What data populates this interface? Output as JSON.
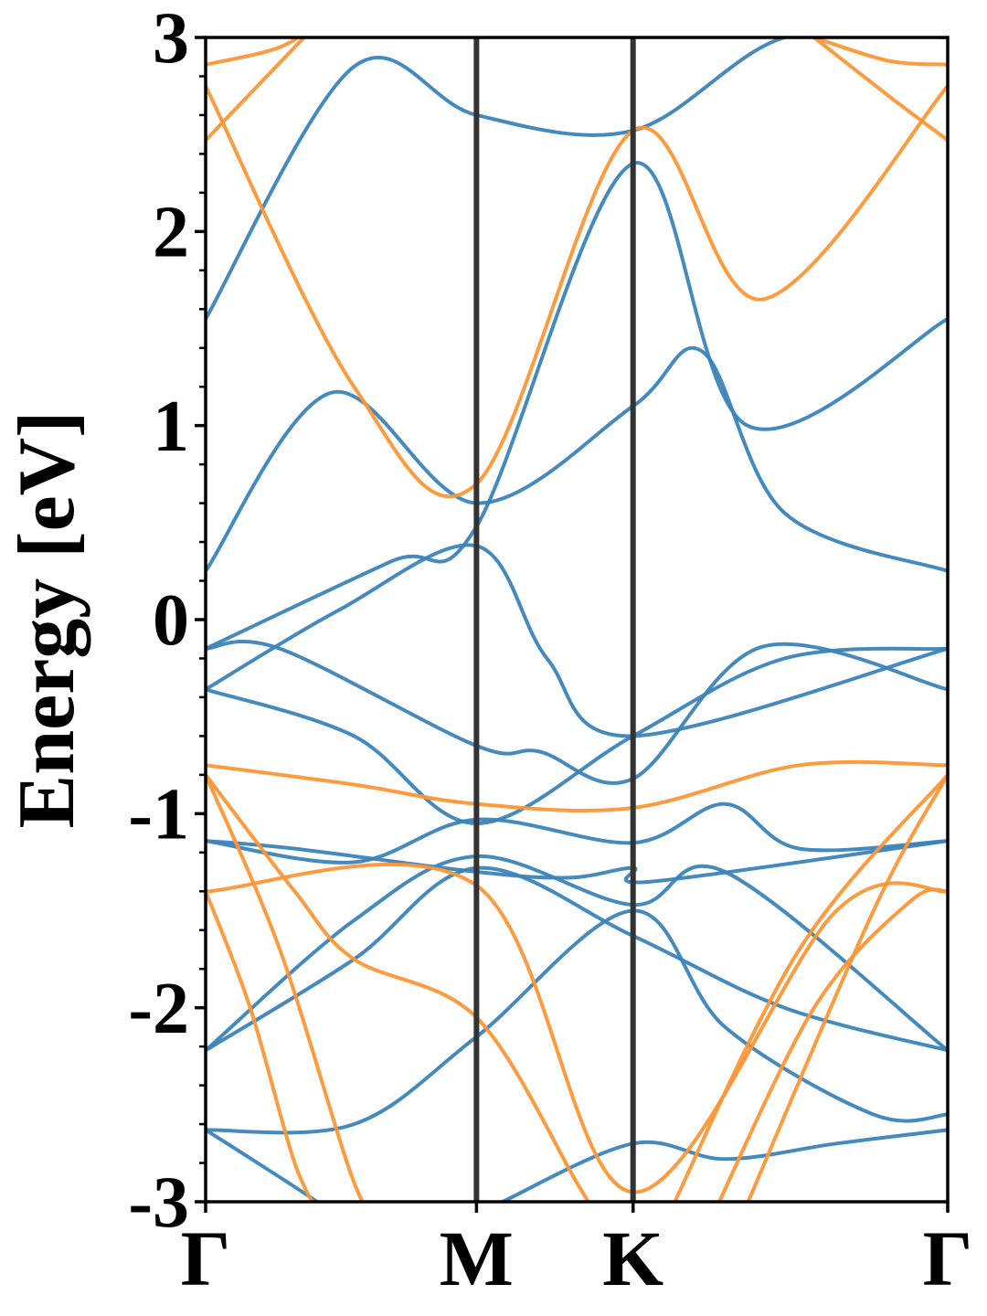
{
  "chart_data": {
    "type": "line",
    "ylabel": "Energy [eV]",
    "ylim": [
      -3,
      3
    ],
    "yticks": [
      {
        "value": 3,
        "label": "3"
      },
      {
        "value": 2,
        "label": "2"
      },
      {
        "value": 1,
        "label": "1"
      },
      {
        "value": 0,
        "label": "0"
      },
      {
        "value": -1,
        "label": "-1"
      },
      {
        "value": -2,
        "label": "-2"
      },
      {
        "value": -3,
        "label": "-3"
      }
    ],
    "xlim": [
      0,
      1
    ],
    "kpoints": [
      {
        "label": "Γ",
        "position": 0.0
      },
      {
        "label": "M",
        "position": 0.365
      },
      {
        "label": "K",
        "position": 0.576
      },
      {
        "label": "Γ",
        "position": 1.0
      }
    ],
    "colors": {
      "blue": "#3a84bb",
      "orange": "#ff9533",
      "divider": "#333333"
    },
    "series": [
      {
        "color": "blue",
        "x": [
          0,
          0.2,
          0.365,
          0.576,
          0.78,
          1.0
        ],
        "y": [
          1.55,
          2.85,
          2.6,
          2.52,
          3.0,
          3.0
        ]
      },
      {
        "color": "blue",
        "x": [
          0,
          0.17,
          0.365,
          0.576,
          0.67,
          0.78,
          1.0
        ],
        "y": [
          0.25,
          1.17,
          0.6,
          1.1,
          1.38,
          0.55,
          0.25
        ]
      },
      {
        "color": "blue",
        "x": [
          0,
          0.25,
          0.365,
          0.576,
          0.73,
          1.0
        ],
        "y": [
          -0.15,
          0.3,
          0.48,
          2.35,
          1.0,
          1.55
        ]
      },
      {
        "color": "blue",
        "x": [
          0,
          0.18,
          0.365,
          0.46,
          0.576,
          1.0
        ],
        "y": [
          -0.36,
          0.05,
          0.38,
          -0.2,
          -0.6,
          -0.15
        ]
      },
      {
        "color": "blue",
        "x": [
          0,
          0.1,
          0.365,
          0.45,
          0.576,
          0.75,
          1.0
        ],
        "y": [
          -0.15,
          -0.15,
          -0.65,
          -0.68,
          -0.82,
          -0.14,
          -0.36
        ]
      },
      {
        "color": "blue",
        "x": [
          0,
          0.2,
          0.365,
          0.576,
          0.78,
          1.0
        ],
        "y": [
          -0.36,
          -0.6,
          -1.05,
          -0.6,
          -0.2,
          -0.15
        ]
      },
      {
        "color": "blue",
        "x": [
          0,
          0.2,
          0.365,
          0.576,
          0.7,
          0.8,
          1.0
        ],
        "y": [
          -1.14,
          -1.25,
          -1.03,
          -1.15,
          -0.95,
          -1.18,
          -1.14
        ]
      },
      {
        "color": "blue",
        "x": [
          0,
          0.12,
          0.365,
          0.49,
          0.576,
          0.6,
          1.0
        ],
        "y": [
          -1.14,
          -1.18,
          -1.3,
          -1.33,
          -1.28,
          -1.35,
          -1.14
        ]
      },
      {
        "color": "blue",
        "x": [
          0,
          0.2,
          0.365,
          0.576,
          0.7,
          1.0
        ],
        "y": [
          -2.22,
          -1.55,
          -1.22,
          -1.47,
          -1.3,
          -2.22
        ]
      },
      {
        "color": "blue",
        "x": [
          0,
          0.2,
          0.365,
          0.576,
          0.78,
          1.0
        ],
        "y": [
          -2.22,
          -1.75,
          -1.28,
          -1.63,
          -2.0,
          -2.22
        ]
      },
      {
        "color": "blue",
        "x": [
          0,
          0.2,
          0.365,
          0.576,
          0.7,
          0.9,
          1.0
        ],
        "y": [
          -2.63,
          -2.6,
          -2.15,
          -1.5,
          -2.1,
          -2.55,
          -2.55
        ]
      },
      {
        "color": "blue",
        "x": [
          0,
          0.07,
          0.15,
          0.18
        ],
        "y": [
          -2.63,
          -2.8,
          -3.0,
          -3.1
        ]
      },
      {
        "color": "blue",
        "x": [
          0.4,
          0.576,
          0.7,
          0.85,
          1.0
        ],
        "y": [
          -3.0,
          -2.7,
          -2.78,
          -2.7,
          -2.63
        ]
      },
      {
        "color": "orange",
        "x": [
          0,
          0.2,
          0.365,
          0.576,
          0.75,
          1.0
        ],
        "y": [
          2.75,
          1.2,
          0.7,
          2.52,
          1.65,
          2.75
        ]
      },
      {
        "color": "orange",
        "x": [
          0,
          0.12,
          0.16
        ],
        "y": [
          2.47,
          2.95,
          3.1
        ]
      },
      {
        "color": "orange",
        "x": [
          0.82,
          0.92,
          1.0
        ],
        "y": [
          3.0,
          2.7,
          2.47
        ]
      },
      {
        "color": "orange",
        "x": [
          0,
          0.1,
          0.16
        ],
        "y": [
          2.86,
          2.95,
          3.1
        ]
      },
      {
        "color": "orange",
        "x": [
          0.82,
          0.92,
          1.0
        ],
        "y": [
          3.0,
          2.88,
          2.86
        ]
      },
      {
        "color": "orange",
        "x": [
          0,
          0.2,
          0.365,
          0.576,
          0.8,
          1.0
        ],
        "y": [
          -0.75,
          -0.85,
          -0.95,
          -0.97,
          -0.75,
          -0.75
        ]
      },
      {
        "color": "orange",
        "x": [
          0,
          0.365,
          0.576,
          0.85,
          1.0
        ],
        "y": [
          -1.4,
          -1.37,
          -2.95,
          -1.5,
          -1.4
        ]
      },
      {
        "color": "orange",
        "x": [
          0,
          0.12,
          0.2,
          0.365,
          0.5,
          0.53
        ],
        "y": [
          -0.8,
          -1.4,
          -1.75,
          -2.05,
          -2.9,
          -3.1
        ]
      },
      {
        "color": "orange",
        "x": [
          0.72,
          0.9,
          1.0
        ],
        "y": [
          -3.1,
          -1.5,
          -0.8
        ]
      },
      {
        "color": "orange",
        "x": [
          0,
          0.1,
          0.2,
          0.24
        ],
        "y": [
          -0.8,
          -1.7,
          -2.9,
          -3.1
        ]
      },
      {
        "color": "orange",
        "x": [
          0.62,
          0.8,
          1.0
        ],
        "y": [
          -3.1,
          -1.7,
          -0.8
        ]
      },
      {
        "color": "orange",
        "x": [
          0,
          0.06,
          0.12,
          0.16
        ],
        "y": [
          -1.4,
          -2.0,
          -2.8,
          -3.1
        ]
      },
      {
        "color": "orange",
        "x": [
          0.68,
          0.82,
          0.95,
          1.0
        ],
        "y": [
          -3.1,
          -2.0,
          -1.45,
          -1.4
        ]
      }
    ]
  }
}
